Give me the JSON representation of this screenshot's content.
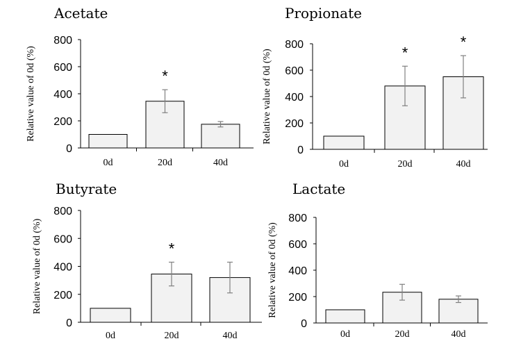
{
  "chart_data": [
    {
      "type": "bar",
      "title": "Acetate",
      "ylabel": "Relative value of 0d (%)",
      "categories": [
        "0d",
        "20d",
        "40d"
      ],
      "values": [
        100,
        345,
        175
      ],
      "errors": [
        0,
        85,
        20
      ],
      "significance": [
        "",
        "*",
        ""
      ],
      "ylim": [
        0,
        800
      ],
      "yticks": [
        0,
        200,
        400,
        600,
        800
      ]
    },
    {
      "type": "bar",
      "title": "Propionate",
      "ylabel": "Relative value of 0d (%)",
      "categories": [
        "0d",
        "20d",
        "40d"
      ],
      "values": [
        100,
        480,
        550
      ],
      "errors": [
        0,
        150,
        160
      ],
      "significance": [
        "",
        "*",
        "*"
      ],
      "ylim": [
        0,
        800
      ],
      "yticks": [
        0,
        200,
        400,
        600,
        800
      ]
    },
    {
      "type": "bar",
      "title": "Butyrate",
      "ylabel": "Relative value of 0d (%)",
      "categories": [
        "0d",
        "20d",
        "40d"
      ],
      "values": [
        100,
        345,
        320
      ],
      "errors": [
        0,
        85,
        110
      ],
      "significance": [
        "",
        "*",
        ""
      ],
      "ylim": [
        0,
        800
      ],
      "yticks": [
        0,
        200,
        400,
        600,
        800
      ]
    },
    {
      "type": "bar",
      "title": "Lactate",
      "ylabel": "Relative value of 0d (%)",
      "categories": [
        "0d",
        "20d",
        "40d"
      ],
      "values": [
        100,
        233,
        180
      ],
      "errors": [
        0,
        60,
        25
      ],
      "significance": [
        "",
        "",
        ""
      ],
      "ylim": [
        0,
        800
      ],
      "yticks": [
        0,
        200,
        400,
        600,
        800
      ]
    }
  ]
}
